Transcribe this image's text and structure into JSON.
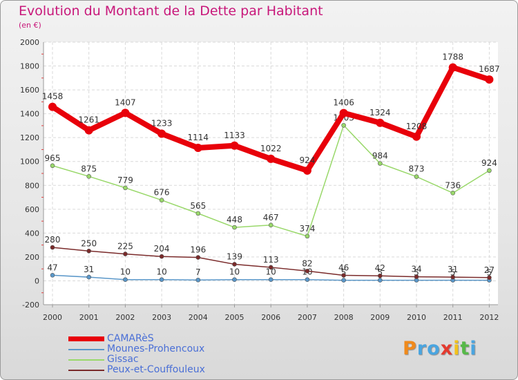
{
  "header": {
    "title": "Evolution du Montant de la Dette par Habitant",
    "subtitle": "(en €)"
  },
  "logo": {
    "letters": [
      "P",
      "r",
      "o",
      "x",
      "i",
      "t",
      "i"
    ],
    "colors": [
      "#f08a1c",
      "#4aa5e0",
      "#4aa5e0",
      "#e43a2f",
      "#f2c21c",
      "#56b949",
      "#4aa5e0"
    ]
  },
  "chart_data": {
    "type": "line",
    "categories": [
      "2000",
      "2001",
      "2002",
      "2003",
      "2004",
      "2005",
      "2006",
      "2007",
      "2008",
      "2009",
      "2010",
      "2011",
      "2012"
    ],
    "ylim": [
      -200,
      2000
    ],
    "yticks": [
      -200,
      0,
      200,
      400,
      600,
      800,
      1000,
      1200,
      1400,
      1600,
      1800,
      2000
    ],
    "grid": true,
    "legend_position": "bottom-left",
    "series": [
      {
        "name": "CAMARèS",
        "color": "#e8000a",
        "width": 8,
        "values": [
          1458,
          1261,
          1407,
          1233,
          1114,
          1133,
          1022,
          924,
          1406,
          1324,
          1208,
          1788,
          1687
        ]
      },
      {
        "name": "Mounes-Prohencoux",
        "color": "#5a97c9",
        "width": 1.5,
        "values": [
          47,
          31,
          10,
          10,
          7,
          10,
          10,
          10,
          5,
          5,
          5,
          5,
          5
        ]
      },
      {
        "name": "Gissac",
        "color": "#99d86a",
        "width": 1.5,
        "values": [
          965,
          875,
          779,
          676,
          565,
          448,
          467,
          374,
          1303,
          984,
          873,
          736,
          924
        ]
      },
      {
        "name": "Peux-et-Couffouleux",
        "color": "#7a2a2a",
        "width": 1.5,
        "values": [
          280,
          250,
          225,
          204,
          196,
          139,
          113,
          82,
          46,
          42,
          34,
          31,
          27
        ]
      }
    ]
  }
}
